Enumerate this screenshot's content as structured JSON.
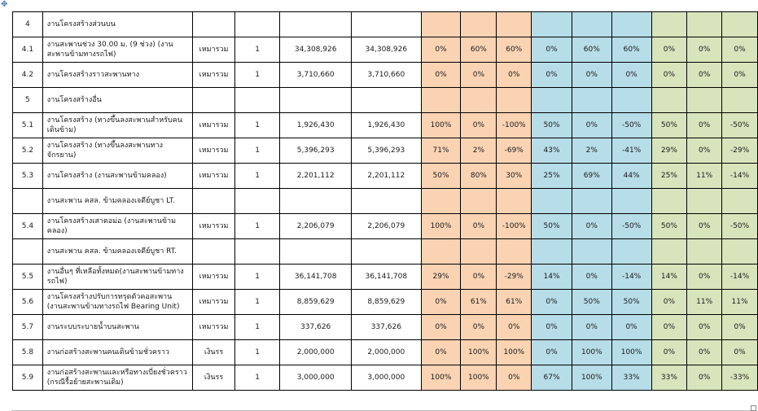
{
  "colors": {
    "group1": "#fad3b3",
    "group2": "#b7dde8",
    "group3": "#d8e4bc"
  },
  "icons": {
    "move_handle": "move-arrows-icon"
  },
  "rows": [
    {
      "no": "4",
      "desc": "งานโครงสร้างส่วนบน",
      "unit": "",
      "qty": "",
      "amount": "",
      "total": "",
      "p1": [
        "",
        "",
        ""
      ],
      "p2": [
        "",
        "",
        ""
      ],
      "p3": [
        "",
        "",
        ""
      ]
    },
    {
      "no": "4.1",
      "desc": "งานสะพานช่วง 30.00 ม. (9 ช่วง) (งานสะพานข้ามทางรถไฟ)",
      "unit": "เหมารวม",
      "qty": "1",
      "amount": "34,308,926",
      "total": "34,308,926",
      "p1": [
        "0%",
        "60%",
        "60%"
      ],
      "p2": [
        "0%",
        "60%",
        "60%"
      ],
      "p3": [
        "0%",
        "0%",
        "0%"
      ]
    },
    {
      "no": "4.2",
      "desc": "งานโครงสร้างราวสะพานทาง",
      "unit": "เหมารวม",
      "qty": "1",
      "amount": "3,710,660",
      "total": "3,710,660",
      "p1": [
        "0%",
        "0%",
        "0%"
      ],
      "p2": [
        "0%",
        "0%",
        "0%"
      ],
      "p3": [
        "0%",
        "0%",
        "0%"
      ]
    },
    {
      "no": "5",
      "desc": "งานโครงสร้างอื่น",
      "unit": "",
      "qty": "",
      "amount": "",
      "total": "",
      "p1": [
        "",
        "",
        ""
      ],
      "p2": [
        "",
        "",
        ""
      ],
      "p3": [
        "",
        "",
        ""
      ]
    },
    {
      "no": "5.1",
      "desc": "งานโครงสร้าง (ทางขึ้นลงสะพานสำหรับคนเดินข้าม)",
      "unit": "เหมารวม",
      "qty": "1",
      "amount": "1,926,430",
      "total": "1,926,430",
      "p1": [
        "100%",
        "0%",
        "-100%"
      ],
      "p2": [
        "50%",
        "0%",
        "-50%"
      ],
      "p3": [
        "50%",
        "0%",
        "-50%"
      ]
    },
    {
      "no": "5.2",
      "desc": "งานโครงสร้าง (ทางขึ้นลงสะพานทางจักรยาน)",
      "unit": "เหมารวม",
      "qty": "1",
      "amount": "5,396,293",
      "total": "5,396,293",
      "p1": [
        "71%",
        "2%",
        "-69%"
      ],
      "p2": [
        "43%",
        "2%",
        "-41%"
      ],
      "p3": [
        "29%",
        "0%",
        "-29%"
      ]
    },
    {
      "no": "5.3",
      "desc": "งานโครงสร้าง (งานสะพานข้ามคลอง)",
      "unit": "เหมารวม",
      "qty": "1",
      "amount": "2,201,112",
      "total": "2,201,112",
      "p1": [
        "50%",
        "80%",
        "30%"
      ],
      "p2": [
        "25%",
        "69%",
        "44%"
      ],
      "p3": [
        "25%",
        "11%",
        "-14%"
      ]
    },
    {
      "no": "",
      "desc": "งานสะพาน คสล. ข้ามคลองเจดีย์บูชา LT.",
      "unit": "",
      "qty": "",
      "amount": "",
      "total": "",
      "p1": [
        "",
        "",
        ""
      ],
      "p2": [
        "",
        "",
        ""
      ],
      "p3": [
        "",
        "",
        ""
      ]
    },
    {
      "no": "5.4",
      "desc": "งานโครงสร้างเสาตอม่อ (งานสะพานข้ามคลอง)",
      "unit": "เหมารวม",
      "qty": "1",
      "amount": "2,206,079",
      "total": "2,206,079",
      "p1": [
        "100%",
        "0%",
        "-100%"
      ],
      "p2": [
        "50%",
        "0%",
        "-50%"
      ],
      "p3": [
        "50%",
        "0%",
        "-50%"
      ]
    },
    {
      "no": "",
      "desc": "งานสะพาน คสล. ข้ามคลองเจดีย์บูชา RT.",
      "unit": "",
      "qty": "",
      "amount": "",
      "total": "",
      "p1": [
        "",
        "",
        ""
      ],
      "p2": [
        "",
        "",
        ""
      ],
      "p3": [
        "",
        "",
        ""
      ]
    },
    {
      "no": "5.5",
      "desc": "งานอื่นๆ ที่เหลือทั้งหมด(งานสะพานข้ามทางรถไฟ)",
      "unit": "เหมารวม",
      "qty": "1",
      "amount": "36,141,708",
      "total": "36,141,708",
      "p1": [
        "29%",
        "0%",
        "-29%"
      ],
      "p2": [
        "14%",
        "0%",
        "-14%"
      ],
      "p3": [
        "14%",
        "0%",
        "-14%"
      ]
    },
    {
      "no": "5.6",
      "desc": "งานโครงสร้างปรับการทรุดตัวคอสะพาน (งานสะพานข้ามทางรถไฟ Bearing Unit)",
      "unit": "เหมารวม",
      "qty": "1",
      "amount": "8,859,629",
      "total": "8,859,629",
      "p1": [
        "0%",
        "61%",
        "61%"
      ],
      "p2": [
        "0%",
        "50%",
        "50%"
      ],
      "p3": [
        "0%",
        "11%",
        "11%"
      ]
    },
    {
      "no": "5.7",
      "desc": "งานระบบระบายน้ำบนสะพาน",
      "unit": "เหมารวม",
      "qty": "1",
      "amount": "337,626",
      "total": "337,626",
      "p1": [
        "0%",
        "0%",
        "0%"
      ],
      "p2": [
        "0%",
        "0%",
        "0%"
      ],
      "p3": [
        "0%",
        "0%",
        "0%"
      ]
    },
    {
      "no": "5.8",
      "desc": "งานก่อสร้างสะพานคนเดินข้ามชั่วคราว",
      "unit": "เงินรร",
      "qty": "1",
      "amount": "2,000,000",
      "total": "2,000,000",
      "p1": [
        "0%",
        "100%",
        "100%"
      ],
      "p2": [
        "0%",
        "100%",
        "100%"
      ],
      "p3": [
        "0%",
        "0%",
        "0%"
      ]
    },
    {
      "no": "5.9",
      "desc": "งานก่อสร้างสะพานและหรือทางเบี่ยงชั่วคราว (กรณีรื้อย้ายสะพานเดิม)",
      "unit": "เงินรร",
      "qty": "1",
      "amount": "3,000,000",
      "total": "3,000,000",
      "p1": [
        "100%",
        "100%",
        "0%"
      ],
      "p2": [
        "67%",
        "100%",
        "33%"
      ],
      "p3": [
        "33%",
        "0%",
        "-33%"
      ]
    }
  ]
}
